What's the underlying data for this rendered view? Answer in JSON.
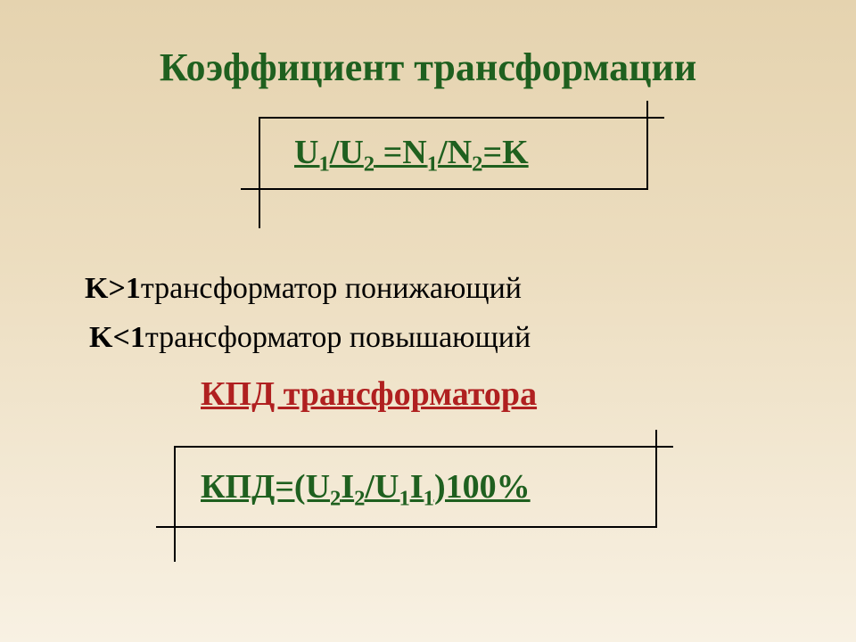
{
  "title": "Коэффициент трансформации",
  "formula1": {
    "html": "U<sub>1</sub>/U<sub>2</sub> =N<sub>1</sub>/N<sub>2</sub>=K",
    "color": "#1f601f",
    "fontsize": 38
  },
  "line1": {
    "prefix": "K>1",
    "rest": "трансформатор понижающий"
  },
  "line2": {
    "prefix": "K<1",
    "rest": "трансформатор повышающий"
  },
  "subtitle": "КПД трансформатора",
  "formula2": {
    "html": "КПД=(U<sub>2</sub>I<sub>2</sub>/U<sub>1</sub>I<sub>1</sub>)100%",
    "color": "#1f601f",
    "fontsize": 38
  },
  "colors": {
    "title": "#1f601f",
    "subtitle": "#b02020",
    "body": "#000000",
    "frame": "#000000",
    "bg_top": "#e5d3af",
    "bg_bottom": "#f8f1e3"
  }
}
